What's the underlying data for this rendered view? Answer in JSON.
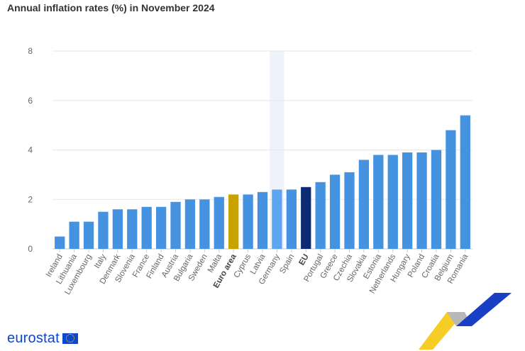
{
  "title": "Annual inflation rates (%) in November 2024",
  "brand": {
    "logo_text": "eurostat",
    "colors": {
      "bar": "#4492e0",
      "euro_area": "#c9a200",
      "eu": "#0e2a73",
      "germany": "#5fa4f0",
      "highlight_band": "#eef3fb",
      "logo": "#0e47cb",
      "grid": "#e6e6e6",
      "axis_text": "#666666"
    }
  },
  "chart_data": {
    "type": "bar",
    "ylim": [
      0,
      8
    ],
    "yticks": [
      0,
      2,
      4,
      6,
      8
    ],
    "grid": true,
    "categories": [
      "Ireland",
      "Lithuania",
      "Luxembourg",
      "Italy",
      "Denmark",
      "Slovenia",
      "France",
      "Finland",
      "Austria",
      "Bulgaria",
      "Sweden",
      "Malta",
      "Euro area",
      "Cyprus",
      "Latvia",
      "Germany",
      "Spain",
      "EU",
      "Portugal",
      "Greece",
      "Czechia",
      "Slovakia",
      "Estonia",
      "Netherlands",
      "Hungary",
      "Poland",
      "Croatia",
      "Belgium",
      "Romania"
    ],
    "values": [
      0.5,
      1.1,
      1.1,
      1.5,
      1.6,
      1.6,
      1.7,
      1.7,
      1.9,
      2.0,
      2.0,
      2.1,
      2.2,
      2.2,
      2.3,
      2.4,
      2.4,
      2.5,
      2.7,
      3.0,
      3.1,
      3.6,
      3.8,
      3.8,
      3.9,
      3.9,
      4.0,
      4.8,
      5.4
    ],
    "bold_categories": [
      "Euro area",
      "EU"
    ],
    "highlight_category": "Germany"
  }
}
